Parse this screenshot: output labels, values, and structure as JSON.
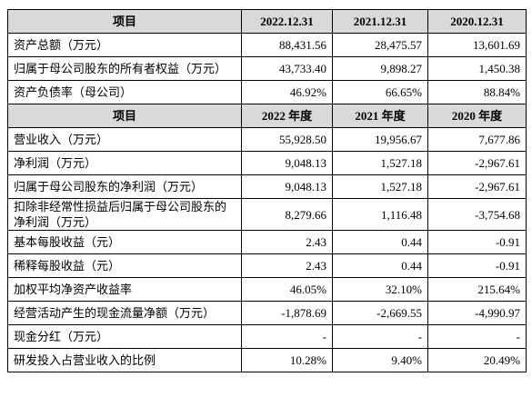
{
  "table": {
    "sections": [
      {
        "header": [
          "项目",
          "2022.12.31",
          "2021.12.31",
          "2020.12.31"
        ],
        "rows": [
          [
            "资产总额（万元）",
            "88,431.56",
            "28,475.57",
            "13,601.69"
          ],
          [
            "归属于母公司股东的所有者权益（万元）",
            "43,733.40",
            "9,898.27",
            "1,450.38"
          ],
          [
            "资产负债率（母公司）",
            "46.92%",
            "66.65%",
            "88.84%"
          ]
        ]
      },
      {
        "header": [
          "项目",
          "2022 年度",
          "2021 年度",
          "2020 年度"
        ],
        "rows": [
          [
            "营业收入（万元）",
            "55,928.50",
            "19,956.67",
            "7,677.86"
          ],
          [
            "净利润（万元）",
            "9,048.13",
            "1,527.18",
            "-2,967.61"
          ],
          [
            "归属于母公司股东的净利润（万元）",
            "9,048.13",
            "1,527.18",
            "-2,967.61"
          ],
          [
            "扣除非经常性损益后归属于母公司股东的净利润（万元）",
            "8,279.66",
            "1,116.48",
            "-3,754.68"
          ],
          [
            "基本每股收益（元）",
            "2.43",
            "0.44",
            "-0.91"
          ],
          [
            "稀释每股收益（元）",
            "2.43",
            "0.44",
            "-0.91"
          ],
          [
            "加权平均净资产收益率",
            "46.05%",
            "32.10%",
            "215.64%"
          ],
          [
            "经营活动产生的现金流量净额（万元）",
            "-1,878.69",
            "-2,669.55",
            "-4,990.97"
          ],
          [
            "现金分红（万元）",
            "-",
            "-",
            "-"
          ],
          [
            "研发投入占营业收入的比例",
            "10.28%",
            "9.40%",
            "20.49%"
          ]
        ]
      }
    ]
  }
}
